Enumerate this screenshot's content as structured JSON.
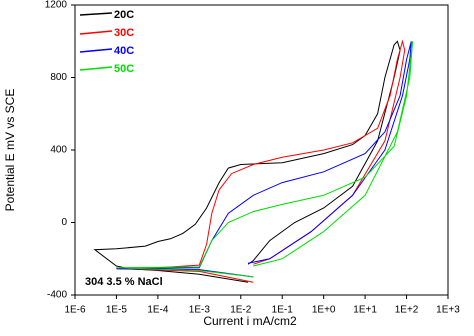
{
  "chart_data": {
    "type": "line",
    "xlabel": "Current i mA/cm2",
    "ylabel": "Potential E mV vs SCE",
    "annotation": "304 3.5 % NaCl",
    "xscale": "log",
    "xlim": [
      1e-06,
      1000
    ],
    "xticks": [
      {
        "value": 1e-06,
        "label": "1E-6"
      },
      {
        "value": 1e-05,
        "label": "1E-5"
      },
      {
        "value": 0.0001,
        "label": "1E-4"
      },
      {
        "value": 0.001,
        "label": "1E-3"
      },
      {
        "value": 0.01,
        "label": "1E-2"
      },
      {
        "value": 0.1,
        "label": "1E-1"
      },
      {
        "value": 1,
        "label": "1E+0"
      },
      {
        "value": 10,
        "label": "1E+1"
      },
      {
        "value": 100,
        "label": "1E+2"
      },
      {
        "value": 1000,
        "label": "1E+3"
      }
    ],
    "ylim": [
      -400,
      1200
    ],
    "yticks": [
      -400,
      0,
      400,
      800,
      1200
    ],
    "legend": "upper left",
    "series": [
      {
        "name": "20C",
        "color": "#000000",
        "x": [
          0.015,
          0.001,
          0.0001,
          2e-05,
          1e-05,
          3e-06,
          1e-05,
          5e-05,
          0.0001,
          0.0002,
          0.0004,
          0.0008,
          0.0015,
          0.003,
          0.005,
          0.01,
          0.1,
          1,
          5,
          10,
          20,
          30,
          50,
          60,
          70,
          50,
          20,
          5,
          1,
          0.2,
          0.05,
          0.02,
          0.015
        ],
        "values": [
          -330,
          -285,
          -265,
          -255,
          -240,
          -150,
          -145,
          -130,
          -105,
          -90,
          -60,
          -10,
          80,
          220,
          300,
          320,
          330,
          380,
          430,
          480,
          600,
          800,
          980,
          1000,
          950,
          800,
          450,
          200,
          80,
          0,
          -100,
          -210,
          -230
        ]
      },
      {
        "name": "30C",
        "color": "#ff0000",
        "x": [
          0.02,
          0.001,
          1e-05,
          0.0001,
          0.001,
          0.0015,
          0.002,
          0.003,
          0.006,
          0.02,
          0.1,
          1,
          5,
          20,
          40,
          60,
          80,
          90,
          70,
          30,
          5,
          0.5,
          0.05,
          0.02
        ],
        "values": [
          -330,
          -270,
          -255,
          -250,
          -235,
          -120,
          50,
          180,
          270,
          320,
          360,
          400,
          440,
          520,
          700,
          900,
          1000,
          950,
          800,
          450,
          150,
          -50,
          -200,
          -230
        ]
      },
      {
        "name": "40C",
        "color": "#0000ff",
        "x": [
          0.02,
          0.001,
          1e-05,
          0.001,
          0.002,
          0.005,
          0.02,
          0.1,
          1,
          10,
          30,
          70,
          100,
          130,
          120,
          80,
          30,
          5,
          0.5,
          0.05,
          0.015
        ],
        "values": [
          -300,
          -260,
          -255,
          -250,
          -100,
          50,
          150,
          220,
          280,
          380,
          500,
          700,
          900,
          1000,
          900,
          700,
          400,
          150,
          -50,
          -200,
          -225
        ]
      },
      {
        "name": "50C",
        "color": "#00dd00",
        "x": [
          0.02,
          0.001,
          1e-05,
          0.001,
          0.002,
          0.005,
          0.02,
          0.1,
          1,
          10,
          50,
          100,
          140,
          120,
          60,
          10,
          1,
          0.1,
          0.02
        ],
        "values": [
          -300,
          -265,
          -250,
          -245,
          -100,
          0,
          60,
          100,
          150,
          250,
          420,
          700,
          1000,
          800,
          500,
          150,
          -50,
          -200,
          -240
        ]
      }
    ]
  }
}
